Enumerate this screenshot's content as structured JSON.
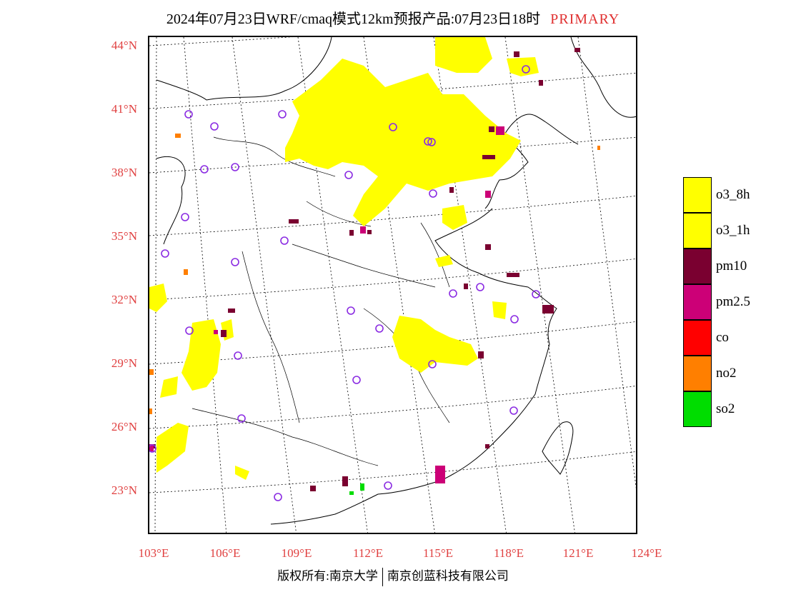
{
  "title": {
    "main": "2024年07月23日WRF/cmaq模式12km预报产品:07月23日18时",
    "tag": "PRIMARY"
  },
  "map": {
    "lat_labels": [
      "44°N",
      "41°N",
      "38°N",
      "35°N",
      "32°N",
      "29°N",
      "26°N",
      "23°N"
    ],
    "lon_labels": [
      "103°E",
      "106°E",
      "109°E",
      "112°E",
      "115°E",
      "118°E",
      "121°E",
      "124°E"
    ]
  },
  "legend": {
    "items": [
      {
        "label": "o3_8h",
        "color": "#ffff00"
      },
      {
        "label": "o3_1h",
        "color": "#ffff00"
      },
      {
        "label": "pm10",
        "color": "#7a0030"
      },
      {
        "label": "pm2.5",
        "color": "#cc0077"
      },
      {
        "label": "co",
        "color": "#ff0000"
      },
      {
        "label": "no2",
        "color": "#ff7f00"
      },
      {
        "label": "so2",
        "color": "#00dd00"
      }
    ]
  },
  "colors": {
    "o3": "#ffff00",
    "pm10": "#7a0030",
    "pm25": "#cc0077",
    "no2": "#ff7f00",
    "so2": "#00dd00",
    "station": "#8a2be2",
    "axis_label": "#e04040"
  },
  "footer": {
    "left": "版权所有:南京大学",
    "right": "南京创蓝科技有限公司"
  }
}
